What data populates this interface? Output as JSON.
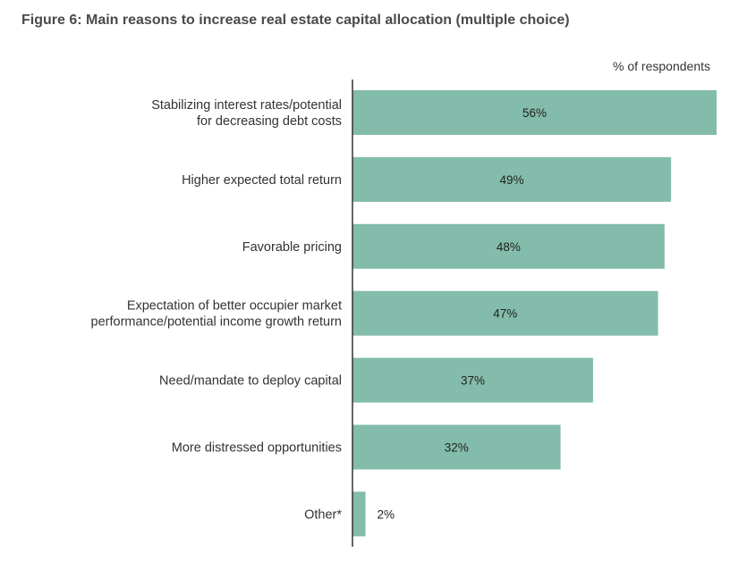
{
  "chart_data": {
    "type": "bar",
    "orientation": "horizontal",
    "title": "Figure 6: Main reasons to increase real estate capital allocation (multiple choice)",
    "unit_label": "% of respondents",
    "xlim": [
      0,
      56
    ],
    "bar_color": "#83bcab",
    "axis_color": "#333333",
    "categories": [
      [
        "Stabilizing interest rates/potential",
        "for decreasing debt costs"
      ],
      [
        "Higher expected total return"
      ],
      [
        "Favorable pricing"
      ],
      [
        "Expectation of better occupier market",
        "performance/potential income growth return"
      ],
      [
        "Need/mandate to deploy capital"
      ],
      [
        "More distressed opportunities"
      ],
      [
        "Other*"
      ]
    ],
    "values": [
      56,
      49,
      48,
      47,
      37,
      32,
      2
    ],
    "value_labels": [
      "56%",
      "49%",
      "48%",
      "47%",
      "37%",
      "32%",
      "2%"
    ]
  }
}
